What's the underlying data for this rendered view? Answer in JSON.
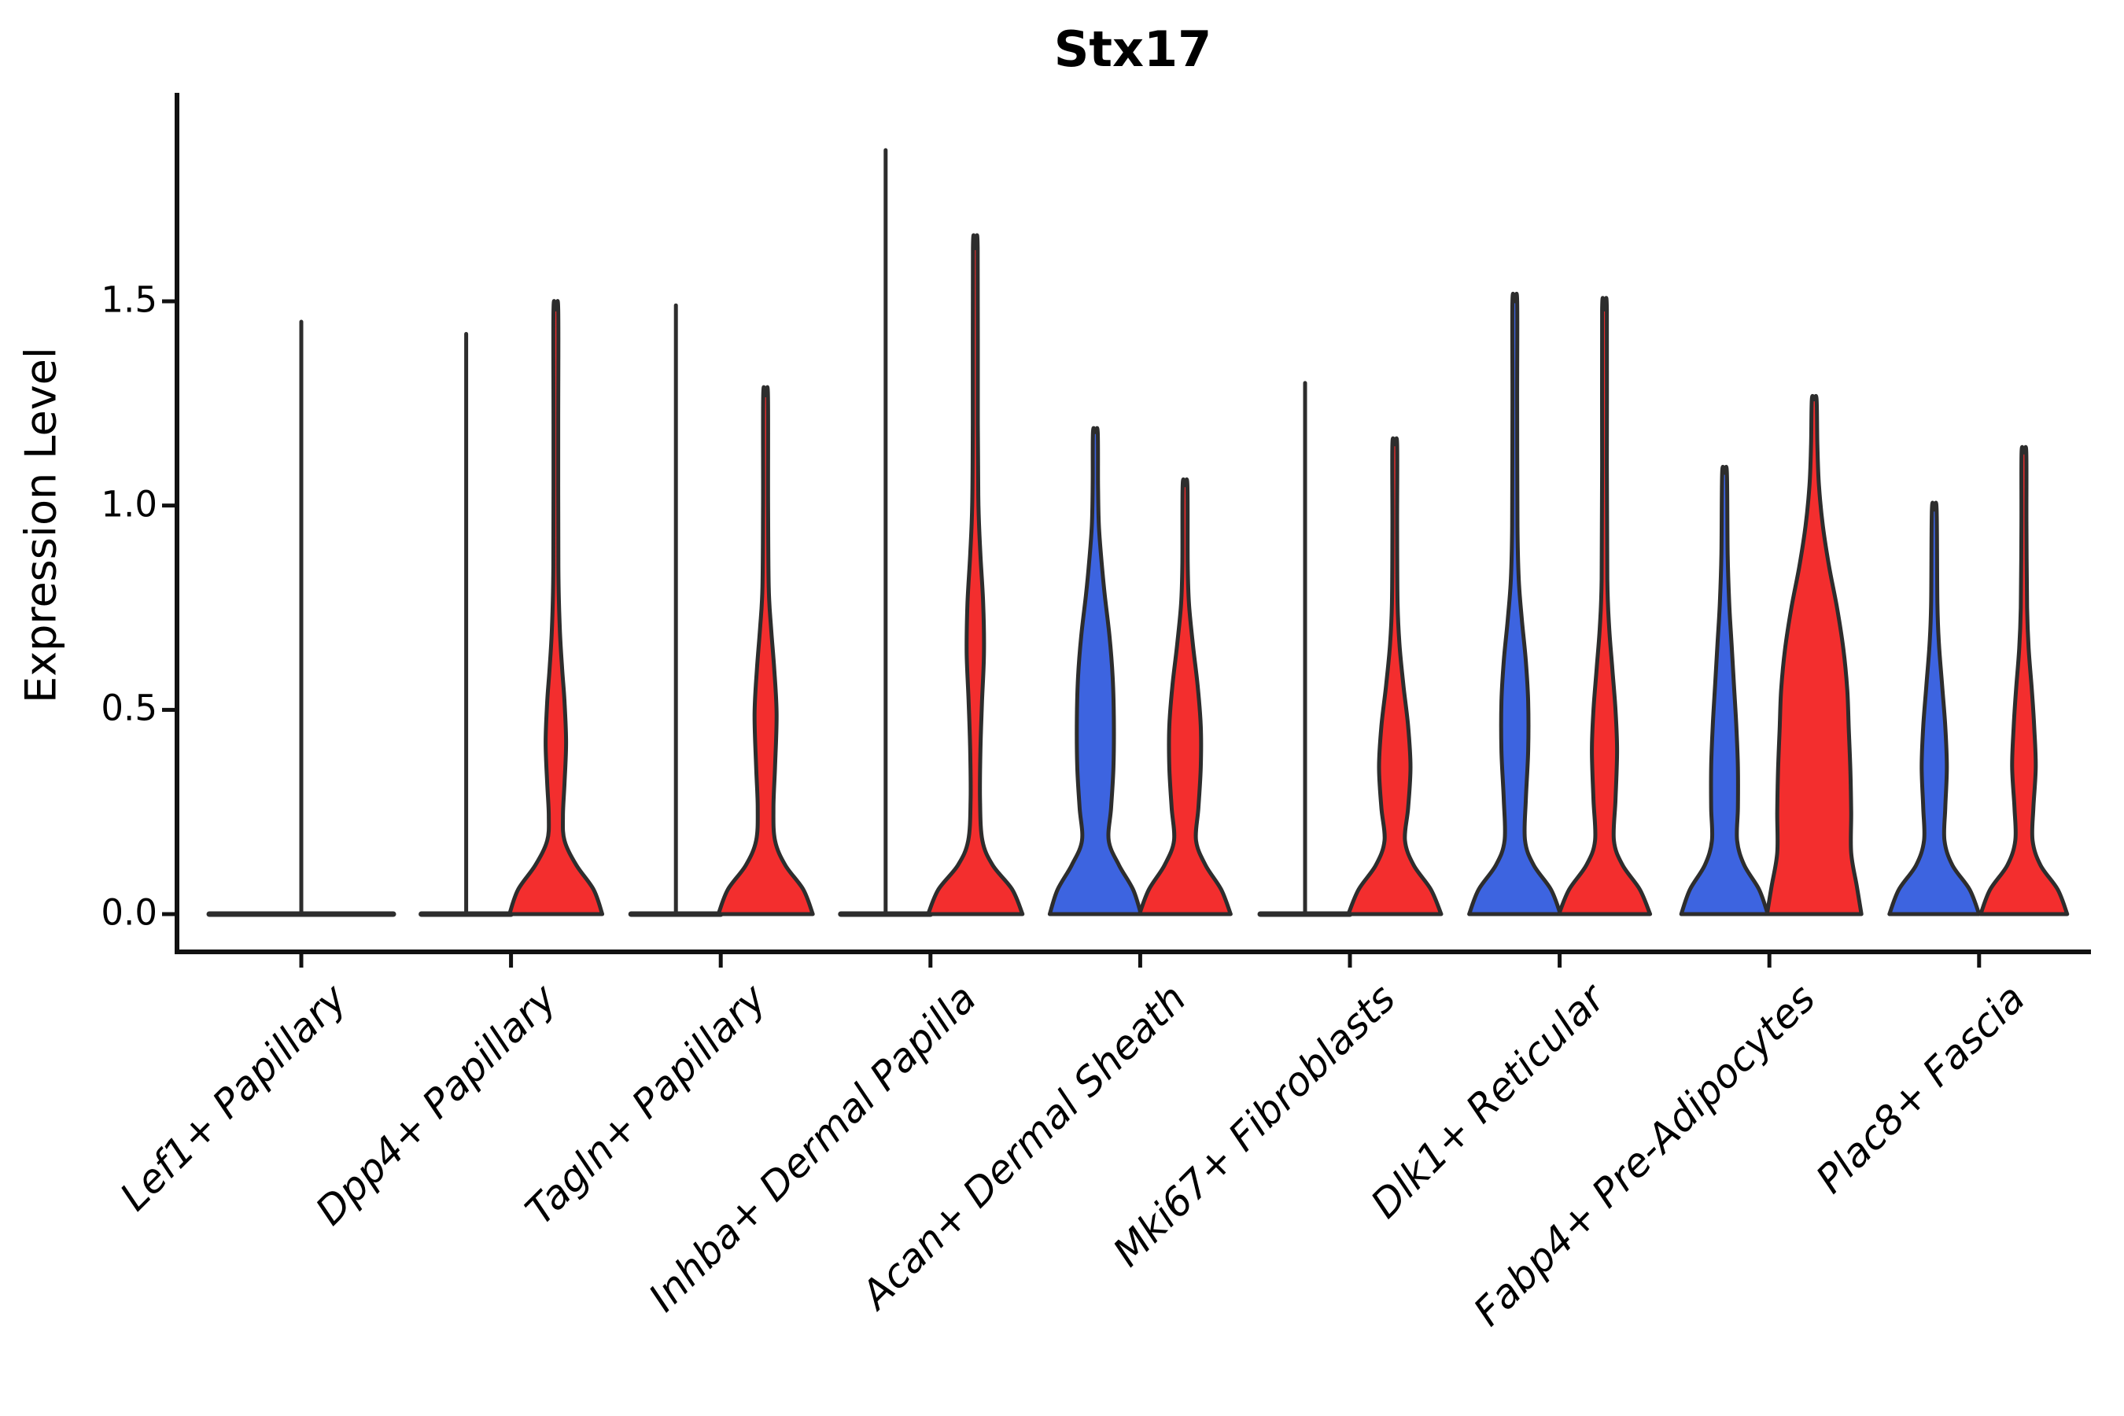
{
  "title": "Stx17",
  "colors": {
    "blue": "#3D64E0",
    "red": "#F32E2E",
    "neutral": "#2d2d2d",
    "outline": "#2d2d2d",
    "axis": "#111111",
    "text": "#000000"
  },
  "chart_data": {
    "type": "violin",
    "title": "Stx17",
    "xlabel": "",
    "ylabel": "Expression Level",
    "ylim": [
      -0.09,
      2.01
    ],
    "yticks": [
      0.0,
      0.5,
      1.0,
      1.5
    ],
    "ytick_labels": [
      "0.0",
      "0.5",
      "1.0",
      "1.5"
    ],
    "x_tick_rotation": 45,
    "grid": false,
    "legend": "none",
    "profile_note": "profile = [expression_value, halfwidth_px]; halfwidth 60 = full single-violin halfwidth",
    "categories": [
      "Lef1+ Papillary",
      "Dpp4+ Papillary",
      "Tagln+ Papillary",
      "Inhba+ Dermal Papilla",
      "Acan+ Dermal Sheath",
      "Mki67+ Fibroblasts",
      "Dlk1+ Reticular",
      "Fabp4+ Pre-Adipocytes",
      "Plac8+ Fascia"
    ],
    "groups": [
      {
        "category": "Lef1+ Papillary",
        "violins": [
          {
            "position": "center",
            "color": "neutral",
            "shape": "flat",
            "max_expression": 1.45,
            "base_halfwidth": 120,
            "profile": null
          }
        ]
      },
      {
        "category": "Dpp4+ Papillary",
        "violins": [
          {
            "position": "left",
            "color": "blue",
            "shape": "flat",
            "max_expression": 1.42,
            "base_halfwidth": 60,
            "profile": null
          },
          {
            "position": "right",
            "color": "red",
            "shape": "body",
            "max_expression": 1.48,
            "base_halfwidth": 60,
            "profile": [
              [
                0,
                59
              ],
              [
                0.06,
                48
              ],
              [
                0.12,
                26
              ],
              [
                0.18,
                11
              ],
              [
                0.24,
                9
              ],
              [
                0.32,
                11
              ],
              [
                0.42,
                13
              ],
              [
                0.52,
                11
              ],
              [
                0.6,
                8
              ],
              [
                0.7,
                5
              ],
              [
                0.85,
                3.2
              ],
              [
                1.2,
                3
              ],
              [
                1.48,
                3
              ]
            ]
          }
        ]
      },
      {
        "category": "Tagln+ Papillary",
        "violins": [
          {
            "position": "left",
            "color": "blue",
            "shape": "flat",
            "max_expression": 1.49,
            "base_halfwidth": 60,
            "profile": null
          },
          {
            "position": "right",
            "color": "red",
            "shape": "body",
            "max_expression": 1.27,
            "base_halfwidth": 60,
            "profile": [
              [
                0,
                60
              ],
              [
                0.06,
                48
              ],
              [
                0.12,
                25
              ],
              [
                0.18,
                12
              ],
              [
                0.26,
                10
              ],
              [
                0.36,
                12
              ],
              [
                0.49,
                14
              ],
              [
                0.6,
                11
              ],
              [
                0.7,
                7
              ],
              [
                0.8,
                4
              ],
              [
                1.0,
                3.2
              ],
              [
                1.27,
                3
              ]
            ]
          }
        ]
      },
      {
        "category": "Inhba+ Dermal Papilla",
        "violins": [
          {
            "position": "left",
            "color": "blue",
            "shape": "flat",
            "max_expression": 1.87,
            "base_halfwidth": 60,
            "profile": null
          },
          {
            "position": "right",
            "color": "red",
            "shape": "body",
            "max_expression": 1.63,
            "base_halfwidth": 60,
            "profile": [
              [
                0,
                60
              ],
              [
                0.06,
                47
              ],
              [
                0.12,
                22
              ],
              [
                0.18,
                9
              ],
              [
                0.28,
                6
              ],
              [
                0.4,
                6.5
              ],
              [
                0.52,
                8.5
              ],
              [
                0.64,
                11
              ],
              [
                0.76,
                10
              ],
              [
                0.88,
                6.5
              ],
              [
                1.0,
                4
              ],
              [
                1.2,
                3.2
              ],
              [
                1.63,
                3
              ]
            ]
          }
        ]
      },
      {
        "category": "Acan+ Dermal Sheath",
        "violins": [
          {
            "position": "left",
            "color": "blue",
            "shape": "body",
            "max_expression": 1.18,
            "base_halfwidth": 58,
            "profile": [
              [
                0,
                58
              ],
              [
                0.06,
                48
              ],
              [
                0.12,
                30
              ],
              [
                0.18,
                17
              ],
              [
                0.26,
                20
              ],
              [
                0.36,
                23
              ],
              [
                0.48,
                23.5
              ],
              [
                0.58,
                22
              ],
              [
                0.68,
                18
              ],
              [
                0.78,
                12
              ],
              [
                0.86,
                8
              ],
              [
                0.95,
                4.5
              ],
              [
                1.05,
                3.4
              ],
              [
                1.18,
                3
              ]
            ]
          },
          {
            "position": "right",
            "color": "red",
            "shape": "body",
            "max_expression": 1.05,
            "base_halfwidth": 58,
            "profile": [
              [
                0,
                58
              ],
              [
                0.06,
                46
              ],
              [
                0.12,
                26
              ],
              [
                0.18,
                14
              ],
              [
                0.26,
                17
              ],
              [
                0.36,
                20
              ],
              [
                0.46,
                20
              ],
              [
                0.56,
                16
              ],
              [
                0.66,
                10
              ],
              [
                0.76,
                5
              ],
              [
                0.86,
                3.4
              ],
              [
                1.05,
                3
              ]
            ]
          }
        ]
      },
      {
        "category": "Mki67+ Fibroblasts",
        "violins": [
          {
            "position": "left",
            "color": "blue",
            "shape": "flat",
            "max_expression": 1.3,
            "base_halfwidth": 60,
            "profile": null
          },
          {
            "position": "right",
            "color": "red",
            "shape": "body",
            "max_expression": 1.15,
            "base_halfwidth": 59,
            "profile": [
              [
                0,
                59
              ],
              [
                0.06,
                46
              ],
              [
                0.12,
                24
              ],
              [
                0.18,
                13
              ],
              [
                0.26,
                17
              ],
              [
                0.36,
                20
              ],
              [
                0.46,
                17
              ],
              [
                0.56,
                11
              ],
              [
                0.66,
                6
              ],
              [
                0.76,
                3.6
              ],
              [
                0.95,
                3
              ],
              [
                1.15,
                3
              ]
            ]
          }
        ]
      },
      {
        "category": "Dlk1+ Reticular",
        "violins": [
          {
            "position": "left",
            "color": "blue",
            "shape": "body",
            "max_expression": 1.5,
            "base_halfwidth": 58,
            "profile": [
              [
                0,
                58
              ],
              [
                0.06,
                46
              ],
              [
                0.12,
                24
              ],
              [
                0.18,
                13
              ],
              [
                0.28,
                14
              ],
              [
                0.4,
                17
              ],
              [
                0.52,
                17
              ],
              [
                0.62,
                14
              ],
              [
                0.72,
                9
              ],
              [
                0.82,
                5
              ],
              [
                0.95,
                3.4
              ],
              [
                1.25,
                3
              ],
              [
                1.5,
                3
              ]
            ]
          },
          {
            "position": "right",
            "color": "red",
            "shape": "body",
            "max_expression": 1.48,
            "base_halfwidth": 58,
            "profile": [
              [
                0,
                58
              ],
              [
                0.06,
                45
              ],
              [
                0.12,
                23
              ],
              [
                0.18,
                12
              ],
              [
                0.28,
                14
              ],
              [
                0.4,
                16
              ],
              [
                0.5,
                14
              ],
              [
                0.6,
                10
              ],
              [
                0.7,
                6
              ],
              [
                0.82,
                3.6
              ],
              [
                1.1,
                3
              ],
              [
                1.48,
                3
              ]
            ]
          }
        ]
      },
      {
        "category": "Fabp4+ Pre-Adipocytes",
        "violins": [
          {
            "position": "left",
            "color": "blue",
            "shape": "body",
            "max_expression": 1.08,
            "base_halfwidth": 55,
            "profile": [
              [
                0,
                55
              ],
              [
                0.06,
                44
              ],
              [
                0.12,
                25
              ],
              [
                0.18,
                16
              ],
              [
                0.26,
                17
              ],
              [
                0.36,
                17
              ],
              [
                0.46,
                15
              ],
              [
                0.56,
                12
              ],
              [
                0.66,
                9
              ],
              [
                0.76,
                6
              ],
              [
                0.88,
                4
              ],
              [
                1.08,
                3
              ]
            ]
          },
          {
            "position": "right",
            "color": "red",
            "shape": "body",
            "max_expression": 1.26,
            "base_halfwidth": 60,
            "profile": [
              [
                0,
                60
              ],
              [
                0.07,
                54
              ],
              [
                0.15,
                47
              ],
              [
                0.25,
                47
              ],
              [
                0.35,
                46
              ],
              [
                0.45,
                44
              ],
              [
                0.55,
                42
              ],
              [
                0.65,
                37
              ],
              [
                0.75,
                29
              ],
              [
                0.85,
                19
              ],
              [
                0.95,
                11
              ],
              [
                1.05,
                6
              ],
              [
                1.15,
                4
              ],
              [
                1.26,
                3
              ]
            ]
          }
        ]
      },
      {
        "category": "Plac8+ Fascia",
        "violins": [
          {
            "position": "left",
            "color": "blue",
            "shape": "body",
            "max_expression": 0.99,
            "base_halfwidth": 57,
            "profile": [
              [
                0,
                57
              ],
              [
                0.06,
                45
              ],
              [
                0.12,
                23
              ],
              [
                0.18,
                13
              ],
              [
                0.26,
                14
              ],
              [
                0.36,
                16
              ],
              [
                0.46,
                14
              ],
              [
                0.56,
                10
              ],
              [
                0.66,
                6
              ],
              [
                0.76,
                4
              ],
              [
                0.99,
                3
              ]
            ]
          },
          {
            "position": "right",
            "color": "red",
            "shape": "body",
            "max_expression": 1.13,
            "base_halfwidth": 55,
            "profile": [
              [
                0,
                55
              ],
              [
                0.06,
                43
              ],
              [
                0.12,
                21
              ],
              [
                0.18,
                11
              ],
              [
                0.26,
                12
              ],
              [
                0.36,
                15
              ],
              [
                0.46,
                13
              ],
              [
                0.55,
                10
              ],
              [
                0.65,
                6
              ],
              [
                0.75,
                4
              ],
              [
                0.95,
                3.2
              ],
              [
                1.13,
                3
              ]
            ]
          }
        ]
      }
    ]
  }
}
